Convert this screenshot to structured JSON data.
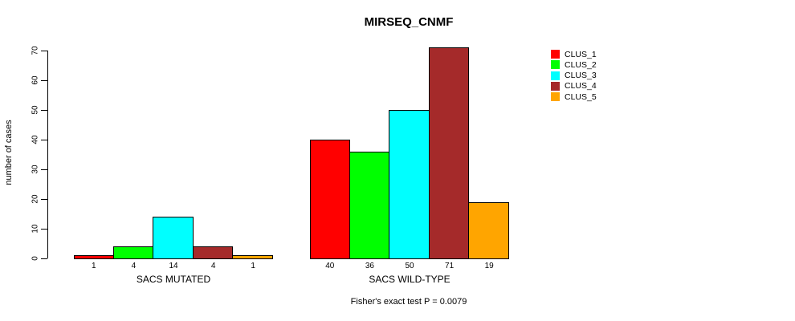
{
  "figure": {
    "title": "MIRSEQ_CNMF",
    "caption": "Fisher's exact test P = 0.0079"
  },
  "chart_data": {
    "type": "bar",
    "title": "MIRSEQ_CNMF",
    "ylabel": "number of cases",
    "xlabel": "",
    "categories": [
      "SACS MUTATED",
      "SACS WILD-TYPE"
    ],
    "series": [
      {
        "name": "CLUS_1",
        "color": "#FF0000",
        "values": [
          1,
          40
        ]
      },
      {
        "name": "CLUS_2",
        "color": "#00FF00",
        "values": [
          4,
          36
        ]
      },
      {
        "name": "CLUS_3",
        "color": "#00FFFF",
        "values": [
          14,
          50
        ]
      },
      {
        "name": "CLUS_4",
        "color": "#A52A2A",
        "values": [
          4,
          71
        ]
      },
      {
        "name": "CLUS_5",
        "color": "#FFA500",
        "values": [
          1,
          19
        ]
      }
    ],
    "bar_value_labels_shown": true,
    "yticks": [
      0,
      10,
      20,
      30,
      40,
      50,
      60,
      70
    ],
    "ylim": [
      0,
      70
    ],
    "grid": false,
    "legend_position": "top-right",
    "annotation": "Fisher's exact test P = 0.0079"
  }
}
